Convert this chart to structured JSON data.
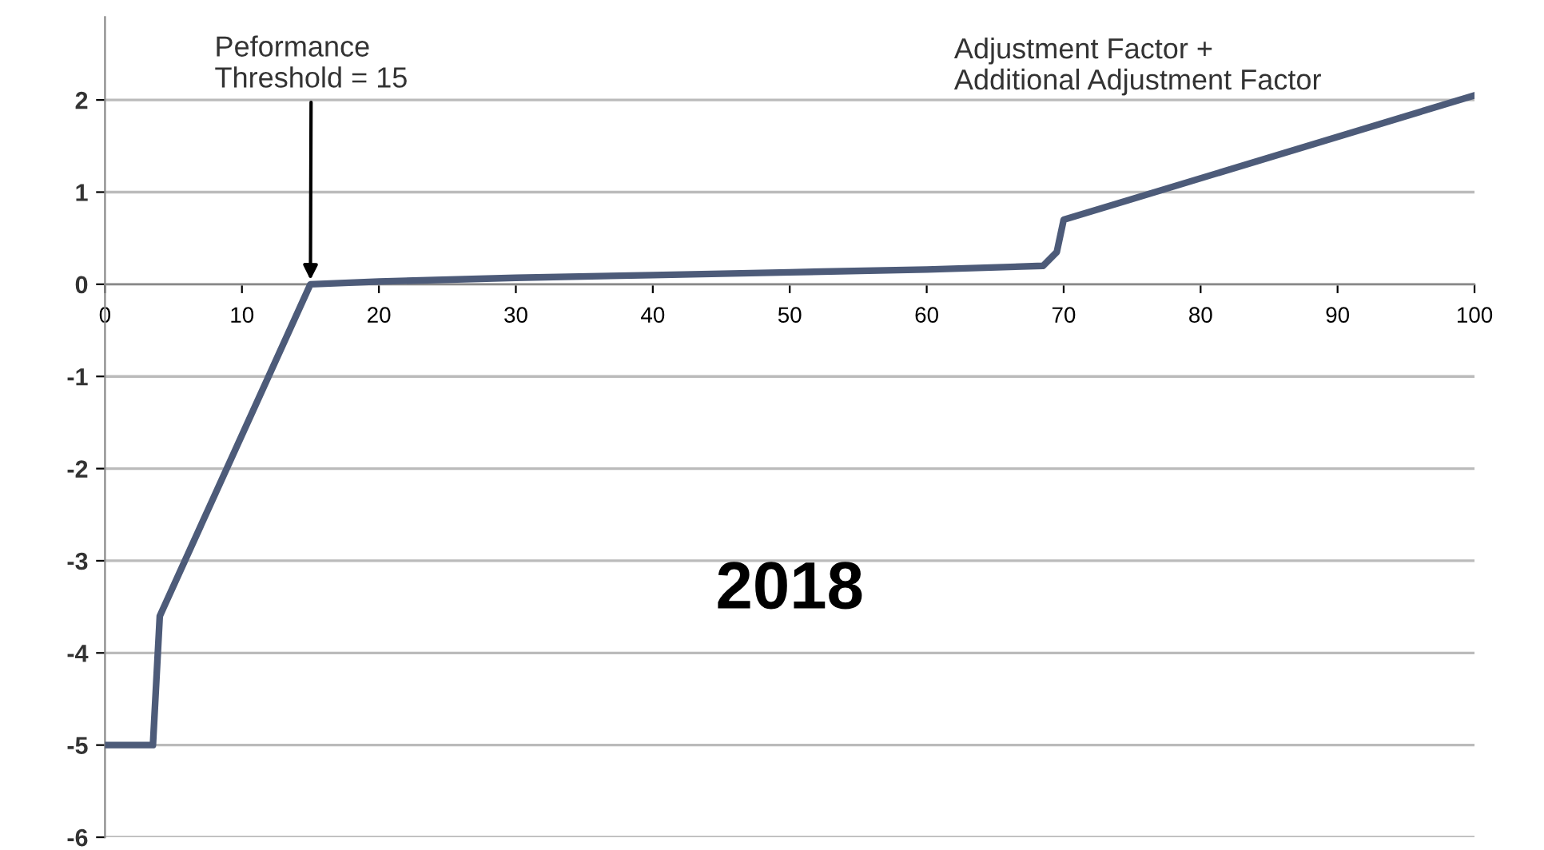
{
  "chart_data": {
    "type": "line",
    "x": [
      0,
      3.5,
      4,
      15,
      20,
      30,
      40,
      50,
      60,
      68.5,
      69.5,
      70,
      100
    ],
    "series": [
      {
        "color": "#4d5b79",
        "values": [
          -5,
          -5,
          -3.6,
          0,
          0.03,
          0.07,
          0.1,
          0.13,
          0.16,
          0.2,
          0.35,
          0.7,
          2.05
        ]
      }
    ],
    "xlim": [
      0,
      100
    ],
    "xticks": [
      0,
      10,
      20,
      30,
      40,
      50,
      60,
      70,
      80,
      90,
      100
    ],
    "ylim": [
      -6,
      2.9
    ],
    "yticks": [
      -6,
      -5,
      -4,
      -3,
      -2,
      -1,
      0,
      1,
      2
    ],
    "grid": "y",
    "marker": "none",
    "line_style": "solid",
    "annotations": [
      {
        "text": "Peformance\nThreshold = 15",
        "x": 15,
        "y": 0
      },
      "Adjustment Factor +\nAdditional Adjustment Factor",
      "2018"
    ]
  }
}
